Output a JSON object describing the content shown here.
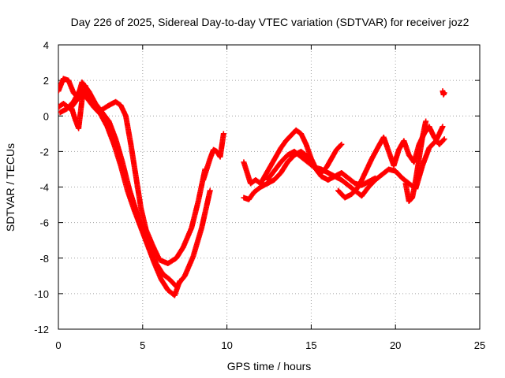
{
  "chart_data": {
    "type": "scatter",
    "title": "Day 226 of 2025, Sidereal Day-to-day VTEC variation (SDTVAR) for receiver joz2",
    "xlabel": "GPS time / hours",
    "ylabel": "SDTVAR / TECUs",
    "xlim": [
      0,
      25
    ],
    "ylim": [
      -12,
      4
    ],
    "xticks": [
      0,
      5,
      10,
      15,
      20,
      25
    ],
    "xtick_labels": [
      "0",
      "5",
      "10",
      "15",
      "20",
      "25"
    ],
    "yticks": [
      -12,
      -10,
      -8,
      -6,
      -4,
      -2,
      0,
      2,
      4
    ],
    "ytick_labels": [
      "-12",
      "-10",
      "-8",
      "-6",
      "-4",
      "-2",
      "0",
      "2",
      "4"
    ],
    "grid": true,
    "marker": "plus",
    "color": "#ff0000",
    "series": [
      {
        "name": "track-1",
        "x": [
          0.0,
          0.3,
          0.6,
          0.9,
          1.2,
          1.6,
          2.0,
          2.5,
          3.0,
          3.4,
          3.7,
          4.0,
          4.3,
          4.6,
          4.9,
          5.2,
          5.6,
          6.0,
          6.5,
          7.0,
          7.4,
          7.9,
          8.3,
          8.7
        ],
        "y": [
          1.4,
          2.1,
          2.0,
          1.3,
          1.0,
          1.2,
          0.8,
          0.3,
          0.6,
          0.8,
          0.6,
          0.0,
          -1.6,
          -3.4,
          -5.2,
          -6.4,
          -7.3,
          -8.1,
          -8.3,
          -8.0,
          -7.4,
          -6.3,
          -4.8,
          -3.0
        ]
      },
      {
        "name": "track-2",
        "x": [
          0.0,
          0.3,
          0.7,
          1.1,
          1.4,
          1.8,
          2.2,
          2.6,
          3.0,
          3.4,
          3.8,
          4.2,
          4.6,
          5.0,
          5.4,
          5.8,
          6.2,
          6.6,
          7.0,
          7.5,
          8.0,
          8.5,
          9.0
        ],
        "y": [
          0.5,
          0.7,
          0.4,
          0.9,
          1.9,
          1.4,
          0.7,
          0.2,
          -0.3,
          -1.3,
          -2.6,
          -4.1,
          -5.3,
          -6.4,
          -7.3,
          -8.3,
          -8.9,
          -9.2,
          -9.6,
          -9.0,
          -7.9,
          -6.3,
          -4.2
        ]
      },
      {
        "name": "track-3",
        "x": [
          0.1,
          0.5,
          0.9,
          1.3,
          1.7,
          2.1,
          2.5,
          2.9,
          3.3,
          3.7,
          4.1,
          4.5,
          4.9,
          5.3,
          5.7,
          6.1,
          6.5,
          6.9,
          7.2
        ],
        "y": [
          0.2,
          0.4,
          0.8,
          1.5,
          1.0,
          0.5,
          0.1,
          -0.6,
          -1.6,
          -2.8,
          -4.2,
          -5.3,
          -6.3,
          -7.3,
          -8.3,
          -9.2,
          -9.8,
          -10.1,
          -9.3
        ]
      },
      {
        "name": "track-4",
        "x": [
          0.8,
          1.0,
          1.2,
          1.4,
          1.6,
          1.8
        ],
        "y": [
          0.4,
          -0.2,
          -0.7,
          0.9,
          1.7,
          1.1
        ]
      },
      {
        "name": "track-5",
        "x": [
          8.6,
          8.8,
          9.0,
          9.2,
          9.4,
          9.6,
          9.8
        ],
        "y": [
          -3.6,
          -3.0,
          -2.4,
          -1.9,
          -2.0,
          -2.3,
          -1.0
        ]
      },
      {
        "name": "track-6",
        "x": [
          11.0,
          11.2,
          11.4,
          11.7,
          12.0,
          12.3,
          12.6,
          12.9,
          13.2,
          13.5,
          13.8,
          14.1,
          14.4,
          14.7,
          15.0,
          15.3,
          15.6,
          15.9,
          16.2,
          16.5,
          16.8
        ],
        "y": [
          -2.6,
          -3.2,
          -3.8,
          -3.6,
          -3.8,
          -3.3,
          -2.8,
          -2.3,
          -1.8,
          -1.4,
          -1.1,
          -0.8,
          -1.0,
          -1.6,
          -2.4,
          -3.0,
          -3.2,
          -2.9,
          -2.4,
          -1.9,
          -1.6
        ]
      },
      {
        "name": "track-7",
        "x": [
          11.0,
          11.3,
          11.6,
          12.0,
          12.4,
          12.8,
          13.2,
          13.6,
          14.0,
          14.4,
          14.8,
          15.2,
          15.6,
          16.0,
          16.4,
          16.8,
          17.2,
          17.6,
          18.0,
          18.4,
          18.8
        ],
        "y": [
          -4.6,
          -4.7,
          -4.3,
          -4.0,
          -3.8,
          -3.6,
          -3.2,
          -2.6,
          -2.2,
          -2.0,
          -2.3,
          -2.9,
          -3.4,
          -3.6,
          -3.4,
          -3.2,
          -3.5,
          -3.8,
          -3.9,
          -3.7,
          -3.5
        ]
      },
      {
        "name": "track-8",
        "x": [
          12.4,
          12.8,
          13.2,
          13.6,
          14.0,
          14.4,
          14.8,
          15.2,
          15.6,
          16.0,
          16.4,
          16.8,
          17.2,
          17.6,
          18.0,
          18.4,
          18.8,
          19.2,
          19.6,
          20.0,
          20.4,
          20.8,
          21.2,
          21.6,
          22.0,
          22.4,
          22.8
        ],
        "y": [
          -3.6,
          -3.1,
          -2.6,
          -2.2,
          -2.0,
          -2.3,
          -2.6,
          -2.9,
          -3.0,
          -3.2,
          -3.4,
          -3.6,
          -3.9,
          -4.2,
          -4.5,
          -4.0,
          -3.6,
          -3.3,
          -3.0,
          -3.1,
          -3.5,
          -3.8,
          -4.1,
          -2.8,
          -1.8,
          -1.4,
          -0.6
        ]
      },
      {
        "name": "track-9",
        "x": [
          16.6,
          17.0,
          17.4,
          17.8,
          18.2,
          18.6,
          19.0,
          19.3,
          19.6,
          19.9,
          20.2,
          20.5,
          20.8,
          21.1,
          21.4,
          21.7,
          22.0,
          22.3,
          22.6,
          22.9
        ],
        "y": [
          -4.2,
          -4.6,
          -4.4,
          -4.0,
          -3.2,
          -2.4,
          -1.7,
          -1.2,
          -2.0,
          -2.8,
          -1.9,
          -1.4,
          -2.2,
          -2.6,
          -1.6,
          -1.0,
          -0.6,
          -1.2,
          -1.6,
          -1.3
        ]
      },
      {
        "name": "track-10",
        "x": [
          20.6,
          20.8,
          21.0,
          21.2,
          21.4,
          21.6,
          21.8
        ],
        "y": [
          -3.8,
          -4.8,
          -4.6,
          -3.6,
          -2.4,
          -1.2,
          -0.3
        ]
      },
      {
        "name": "track-11",
        "x": [
          22.8,
          22.85,
          22.9
        ],
        "y": [
          1.4,
          1.2,
          1.3
        ]
      }
    ]
  }
}
